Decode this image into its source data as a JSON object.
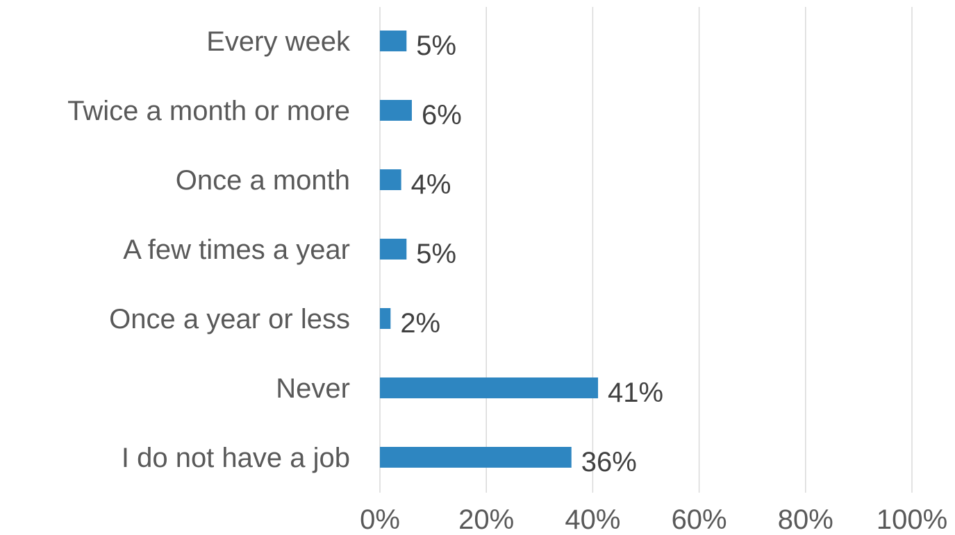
{
  "chart_data": {
    "type": "bar",
    "orientation": "horizontal",
    "categories": [
      "Every week",
      "Twice a month or more",
      "Once a month",
      "A few times a year",
      "Once a year or less",
      "Never",
      "I do not have a job"
    ],
    "values": [
      5,
      6,
      4,
      5,
      2,
      41,
      36
    ],
    "data_labels": [
      "5%",
      "6%",
      "4%",
      "5%",
      "2%",
      "41%",
      "36%"
    ],
    "x_ticks": [
      "0%",
      "20%",
      "40%",
      "60%",
      "80%",
      "100%"
    ],
    "xlim": [
      0,
      100
    ],
    "title": "",
    "xlabel": "",
    "ylabel": "",
    "grid": "vertical",
    "legend": "none",
    "bar_color": "#2E86C1",
    "grid_color": "#d9d9d9",
    "label_color": "#595959"
  }
}
